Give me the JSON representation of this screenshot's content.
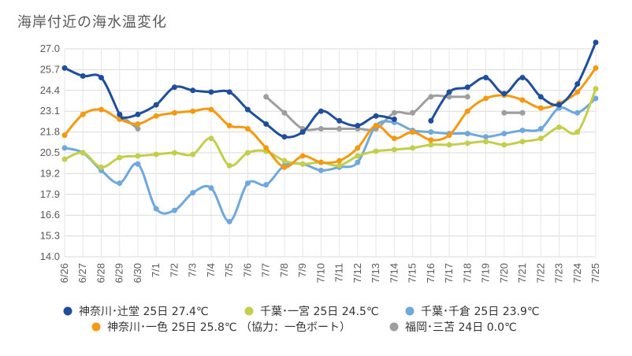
{
  "chart_data": {
    "type": "line",
    "title": "海岸付近の海水温変化",
    "xlabel": "",
    "ylabel": "",
    "ylim": [
      14.0,
      27.0
    ],
    "yticks": [
      "14.0",
      "15.3",
      "16.6",
      "17.9",
      "19.2",
      "20.5",
      "21.8",
      "23.1",
      "24.4",
      "25.7",
      "27.0"
    ],
    "grid": true,
    "legend_position": "bottom",
    "x": [
      "6/26",
      "6/27",
      "6/28",
      "6/29",
      "6/30",
      "7/1",
      "7/2",
      "7/3",
      "7/4",
      "7/5",
      "7/6",
      "7/7",
      "7/8",
      "7/9",
      "7/10",
      "7/11",
      "7/12",
      "7/13",
      "7/14",
      "7/15",
      "7/16",
      "7/17",
      "7/18",
      "7/19",
      "7/20",
      "7/21",
      "7/22",
      "7/23",
      "7/24",
      "7/25"
    ],
    "series": [
      {
        "name": "神奈川･辻堂 25日 27.4℃",
        "color": "#1f4e9c",
        "values": [
          25.8,
          25.3,
          25.2,
          null,
          null,
          null,
          null,
          null,
          null,
          null,
          null,
          null,
          null,
          null,
          null,
          null,
          null,
          null,
          null,
          null,
          null,
          null,
          null,
          null,
          null,
          null,
          null,
          null,
          null,
          null
        ],
        "points": [
          [
            0,
            25.8
          ],
          [
            1,
            25.3
          ],
          [
            2,
            25.2
          ],
          [
            3,
            22.9
          ],
          [
            3.3,
            22.7
          ],
          [
            4,
            22.9
          ],
          [
            5,
            23.5
          ],
          [
            6,
            24.6
          ],
          [
            7,
            24.4
          ],
          [
            8,
            24.3
          ],
          [
            9,
            24.3
          ],
          [
            10,
            23.2
          ],
          [
            11,
            22.3
          ],
          [
            12,
            21.5
          ],
          [
            13,
            21.8
          ],
          [
            14,
            23.1
          ],
          [
            15,
            22.5
          ],
          [
            16,
            22.2
          ],
          [
            17,
            22.8
          ],
          [
            18,
            22.6
          ],
          [
            null,
            null
          ],
          [
            20,
            22.5
          ],
          [
            21,
            24.3
          ],
          [
            22,
            24.6
          ],
          [
            23,
            25.2
          ],
          [
            24,
            24.2
          ],
          [
            25,
            25.2
          ],
          [
            26,
            24.0
          ],
          [
            27,
            23.5
          ],
          [
            28,
            24.8
          ],
          [
            29,
            27.4
          ]
        ]
      },
      {
        "name": "千葉･一宮 25日 24.5℃",
        "color": "#c3cf4a",
        "points": [
          [
            0,
            20.1
          ],
          [
            1,
            20.5
          ],
          [
            2,
            19.6
          ],
          [
            3,
            20.2
          ],
          [
            4,
            20.3
          ],
          [
            5,
            20.4
          ],
          [
            6,
            20.5
          ],
          [
            7,
            20.4
          ],
          [
            8,
            21.4
          ],
          [
            9,
            19.7
          ],
          [
            10,
            20.5
          ],
          [
            11,
            20.6
          ],
          [
            12,
            20.0
          ],
          [
            13,
            19.8
          ],
          [
            14,
            19.9
          ],
          [
            15,
            19.7
          ],
          [
            16,
            20.3
          ],
          [
            17,
            20.6
          ],
          [
            18,
            20.7
          ],
          [
            19,
            20.8
          ],
          [
            20,
            21.0
          ],
          [
            21,
            21.0
          ],
          [
            22,
            21.1
          ],
          [
            23,
            21.2
          ],
          [
            24,
            21.0
          ],
          [
            25,
            21.2
          ],
          [
            26,
            21.4
          ],
          [
            27,
            22.1
          ],
          [
            28,
            21.8
          ],
          [
            29,
            24.5
          ]
        ]
      },
      {
        "name": "千葉･千倉 25日 23.9℃",
        "color": "#6fa8dc",
        "points": [
          [
            0,
            20.8
          ],
          [
            1,
            20.5
          ],
          [
            2,
            19.4
          ],
          [
            3,
            18.6
          ],
          [
            4,
            19.8
          ],
          [
            5,
            17.0
          ],
          [
            6,
            16.9
          ],
          [
            7,
            18.0
          ],
          [
            8,
            18.3
          ],
          [
            9,
            16.2
          ],
          [
            10,
            18.6
          ],
          [
            11,
            18.5
          ],
          [
            12,
            19.7
          ],
          [
            13,
            19.8
          ],
          [
            14,
            19.4
          ],
          [
            15,
            19.6
          ],
          [
            16,
            19.9
          ],
          [
            17,
            22.2
          ],
          [
            18,
            22.4
          ],
          [
            19,
            21.9
          ],
          [
            20,
            21.8
          ],
          [
            21,
            21.7
          ],
          [
            22,
            21.7
          ],
          [
            23,
            21.5
          ],
          [
            24,
            21.7
          ],
          [
            25,
            21.9
          ],
          [
            26,
            22.0
          ],
          [
            27,
            23.3
          ],
          [
            28,
            23.0
          ],
          [
            29,
            23.9
          ]
        ]
      },
      {
        "name": "神奈川･一色 25日 25.8℃ （協力：一色ボート）",
        "color": "#f39a12",
        "points": [
          [
            0,
            21.6
          ],
          [
            1,
            22.9
          ],
          [
            2,
            23.2
          ],
          [
            3,
            22.6
          ],
          [
            4,
            22.3
          ],
          [
            5,
            22.8
          ],
          [
            6,
            23.0
          ],
          [
            7,
            23.1
          ],
          [
            8,
            23.2
          ],
          [
            9,
            22.2
          ],
          [
            10,
            22.0
          ],
          [
            11,
            20.8
          ],
          [
            12,
            19.6
          ],
          [
            13,
            20.3
          ],
          [
            14,
            19.9
          ],
          [
            15,
            20.0
          ],
          [
            16,
            20.8
          ],
          [
            17,
            22.2
          ],
          [
            18,
            21.4
          ],
          [
            19,
            21.8
          ],
          [
            20,
            21.3
          ],
          [
            21,
            21.6
          ],
          [
            22,
            23.1
          ],
          [
            23,
            23.9
          ],
          [
            24,
            24.1
          ],
          [
            25,
            23.8
          ],
          [
            26,
            23.3
          ],
          [
            27,
            23.6
          ],
          [
            28,
            24.3
          ],
          [
            29,
            25.8
          ]
        ]
      },
      {
        "name": "福岡･三苫 24日 0.0℃",
        "color": "#9e9e9e",
        "points": [
          [
            3,
            22.9
          ],
          [
            4,
            22.0
          ],
          [
            null,
            null
          ],
          [
            11,
            24.0
          ],
          [
            12,
            23.0
          ],
          [
            13,
            22.0
          ],
          [
            14,
            22.0
          ],
          [
            15,
            22.0
          ],
          [
            16,
            22.0
          ],
          [
            17,
            22.0
          ],
          [
            18,
            23.0
          ],
          [
            19,
            23.0
          ],
          [
            20,
            24.0
          ],
          [
            21,
            24.0
          ],
          [
            22,
            24.0
          ],
          [
            null,
            null
          ],
          [
            24,
            23.0
          ],
          [
            25,
            23.0
          ]
        ]
      }
    ]
  }
}
